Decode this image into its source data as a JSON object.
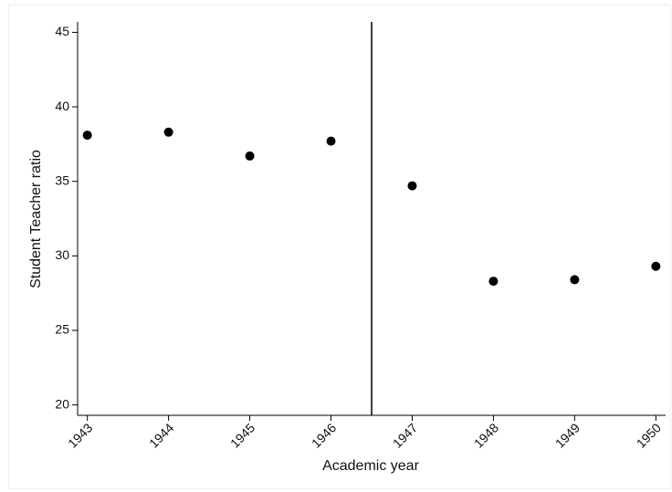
{
  "chart_data": {
    "type": "scatter",
    "x_label": "Academic year",
    "y_label": "Student Teacher ratio",
    "x": [
      1943,
      1944,
      1945,
      1946,
      1947,
      1948,
      1949,
      1950
    ],
    "values": [
      38.1,
      38.3,
      36.7,
      37.7,
      34.7,
      28.3,
      28.4,
      29.3
    ],
    "color": "#000000",
    "xlim": [
      1942.88,
      1950.12
    ],
    "ylim": [
      19.3,
      45.7
    ],
    "xticks": [
      1943,
      1944,
      1945,
      1946,
      1947,
      1948,
      1949,
      1950
    ],
    "yticks": [
      20,
      25,
      30,
      35,
      40,
      45
    ],
    "vlines": [
      1946.5
    ],
    "grid": false
  }
}
